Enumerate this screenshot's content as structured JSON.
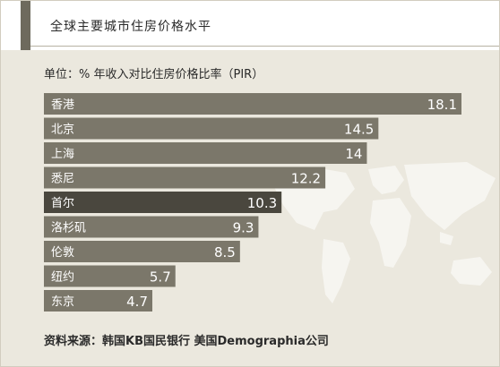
{
  "header": {
    "title": "全球主要城市住房价格水平"
  },
  "subtitle": "单位：% 年收入对比住房价格比率（PIR）",
  "source": "资料来源：韩国KB国民银行 美国Demographia公司",
  "colors": {
    "bar": "#7b776a",
    "highlight_bar": "#4a473e",
    "accent": "#6e6a5d",
    "background": "#ebe8de"
  },
  "chart_data": {
    "type": "bar",
    "orientation": "horizontal",
    "categories": [
      "香港",
      "北京",
      "上海",
      "悉尼",
      "首尔",
      "洛杉矶",
      "伦敦",
      "纽约",
      "东京"
    ],
    "values": [
      18.1,
      14.5,
      14,
      12.2,
      10.3,
      9.3,
      8.5,
      5.7,
      4.7
    ],
    "value_labels": [
      "18.1",
      "14.5",
      "14",
      "12.2",
      "10.3",
      "9.3",
      "8.5",
      "5.7",
      "4.7"
    ],
    "highlight": "首尔",
    "title": "全球主要城市住房价格水平",
    "unit": "单位：% 年收入对比住房价格比率（PIR）",
    "xlim": [
      0,
      18.1
    ]
  }
}
